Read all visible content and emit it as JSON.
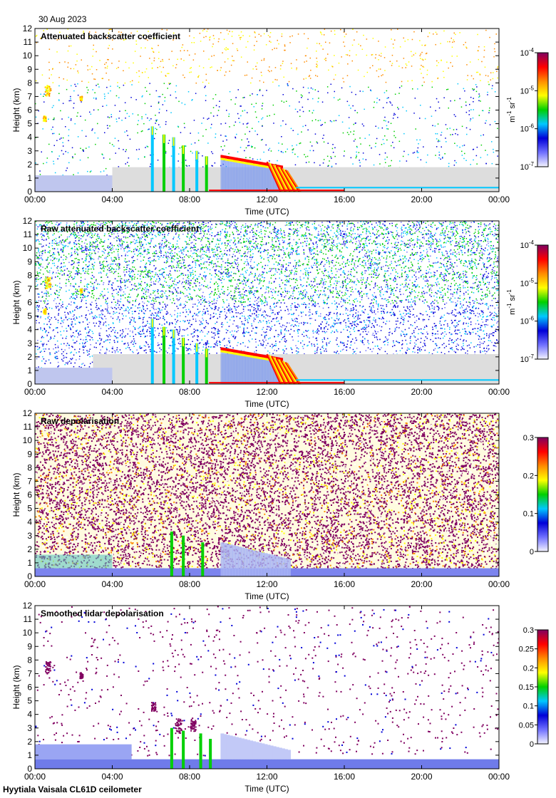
{
  "header": {
    "date": "30 Aug 2023"
  },
  "footer": {
    "site": "Hyytiala Vaisala CL61D ceilometer"
  },
  "colors": {
    "clear_sky": "#ffffff",
    "low_signal": "#dddddd",
    "colormap": [
      "#f4f4ff",
      "#7070ff",
      "#0000d8",
      "#00c8ff",
      "#00d000",
      "#ffff00",
      "#ff8c00",
      "#ff0000",
      "#800060"
    ]
  },
  "chart_data": [
    {
      "type": "heatmap",
      "title": "Attenuated backscatter coefficient",
      "xlabel": "Time (UTC)",
      "ylabel": "Height (km)",
      "x_ticks": [
        "00:00",
        "04:00",
        "08:00",
        "12:00",
        "16:00",
        "20:00",
        "00:00"
      ],
      "y_ticks": [
        "0",
        "1",
        "2",
        "3",
        "4",
        "5",
        "6",
        "7",
        "8",
        "9",
        "10",
        "11",
        "12"
      ],
      "ylim": [
        0,
        12
      ],
      "colorbar": {
        "scale": "log",
        "range": [
          1e-07,
          0.0001
        ],
        "ticks": [
          "10-7",
          "10-6",
          "10-5",
          "10-4"
        ],
        "unit": "m-1 sr-1"
      }
    },
    {
      "type": "heatmap",
      "title": "Raw attenuated backscatter coefficient",
      "xlabel": "Time (UTC)",
      "ylabel": "Height (km)",
      "x_ticks": [
        "00:00",
        "04:00",
        "08:00",
        "12:00",
        "16:00",
        "20:00",
        "00:00"
      ],
      "y_ticks": [
        "0",
        "1",
        "2",
        "3",
        "4",
        "5",
        "6",
        "7",
        "8",
        "9",
        "10",
        "11",
        "12"
      ],
      "ylim": [
        0,
        12
      ],
      "colorbar": {
        "scale": "log",
        "range": [
          1e-07,
          0.0001
        ],
        "ticks": [
          "10-7",
          "10-6",
          "10-5",
          "10-4"
        ],
        "unit": "m-1 sr-1"
      }
    },
    {
      "type": "heatmap",
      "title": "Raw depolarisation",
      "xlabel": "Time (UTC)",
      "ylabel": "Height (km)",
      "x_ticks": [
        "00:00",
        "04:00",
        "08:00",
        "12:00",
        "16:00",
        "20:00",
        "00:00"
      ],
      "y_ticks": [
        "0",
        "1",
        "2",
        "3",
        "4",
        "5",
        "6",
        "7",
        "8",
        "9",
        "10",
        "11",
        "12"
      ],
      "ylim": [
        0,
        12
      ],
      "colorbar": {
        "scale": "linear",
        "range": [
          0,
          0.3
        ],
        "ticks": [
          "0",
          "0.1",
          "0.2",
          "0.3"
        ],
        "unit": ""
      }
    },
    {
      "type": "heatmap",
      "title": "Smoothed lidar depolarisation",
      "xlabel": "Time (UTC)",
      "ylabel": "Height (km)",
      "x_ticks": [
        "00:00",
        "04:00",
        "08:00",
        "12:00",
        "16:00",
        "20:00",
        "00:00"
      ],
      "y_ticks": [
        "0",
        "1",
        "2",
        "3",
        "4",
        "5",
        "6",
        "7",
        "8",
        "9",
        "10",
        "11",
        "12"
      ],
      "ylim": [
        0,
        12
      ],
      "colorbar": {
        "scale": "linear",
        "range": [
          0,
          0.3
        ],
        "ticks": [
          "0",
          "0.05",
          "0.1",
          "0.15",
          "0.2",
          "0.25",
          "0.3"
        ],
        "unit": ""
      }
    }
  ]
}
